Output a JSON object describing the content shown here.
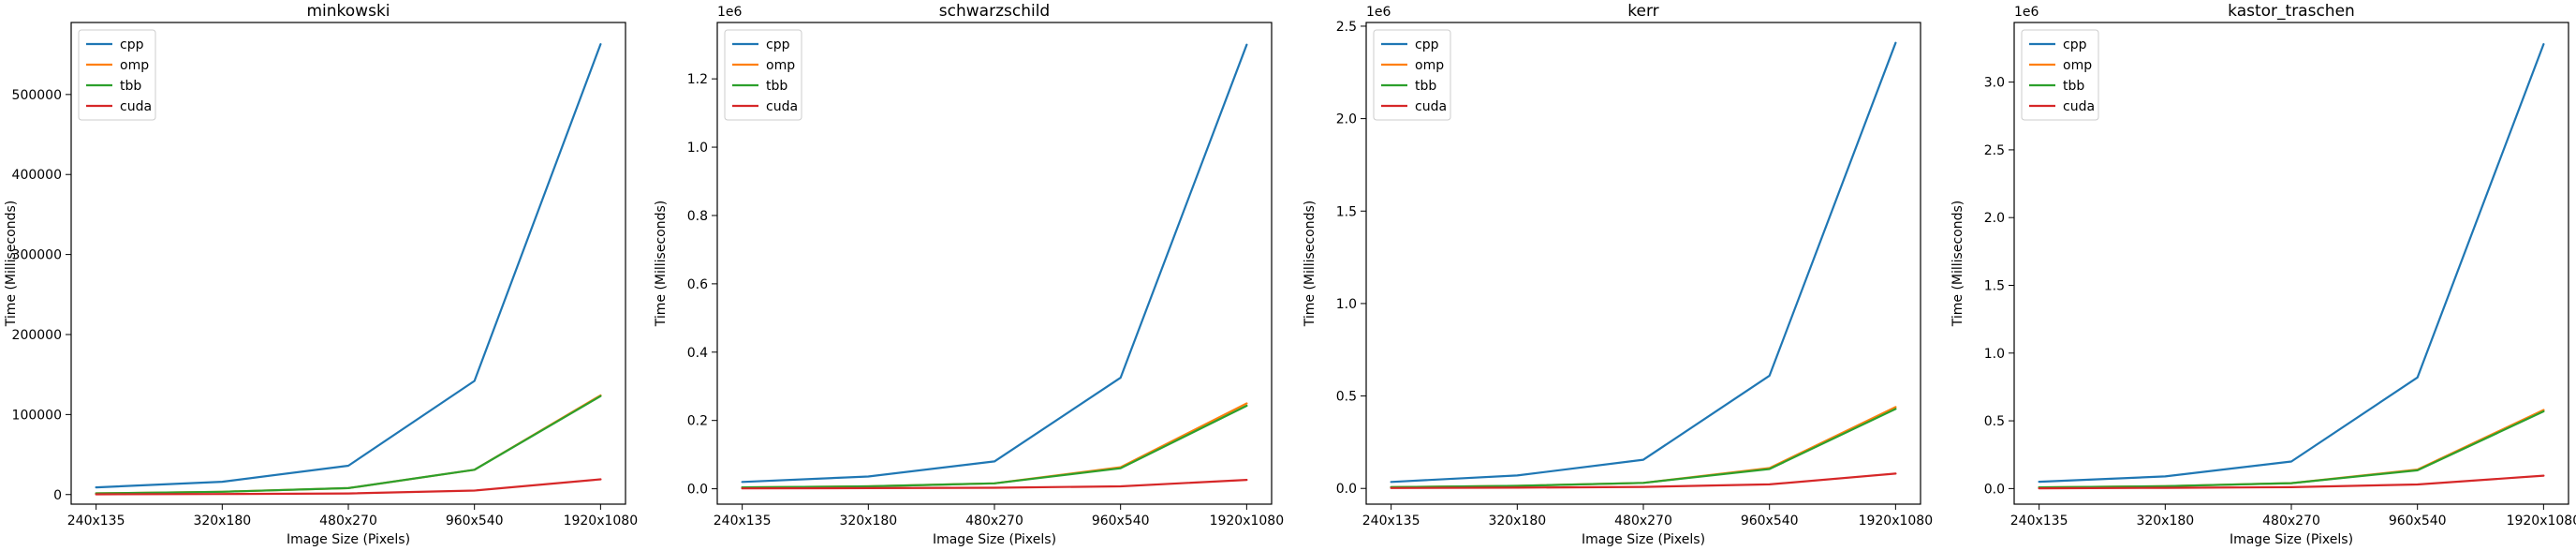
{
  "figure": {
    "colors": {
      "cpp": "#1f77b4",
      "omp": "#ff7f0e",
      "tbb": "#2ca02c",
      "cuda": "#d62728"
    }
  },
  "chart_data": [
    {
      "type": "line",
      "title": "minkowski",
      "xlabel": "Image Size (Pixels)",
      "ylabel": "Time (Milliseconds)",
      "categories": [
        "240x135",
        "320x180",
        "480x270",
        "960x540",
        "1920x1080"
      ],
      "ylim": [
        -12000,
        590000
      ],
      "yticks": [
        0,
        100000,
        200000,
        300000,
        400000,
        500000
      ],
      "ytick_labels": [
        "0",
        "100000",
        "200000",
        "300000",
        "400000",
        "500000"
      ],
      "offset_label": "",
      "legend": "upper left",
      "grid": false,
      "series": [
        {
          "name": "cpp",
          "values": [
            9000,
            16000,
            36000,
            142000,
            563000
          ]
        },
        {
          "name": "omp",
          "values": [
            1500,
            3500,
            8000,
            31000,
            124000
          ]
        },
        {
          "name": "tbb",
          "values": [
            1500,
            3500,
            8000,
            31000,
            123000
          ]
        },
        {
          "name": "cuda",
          "values": [
            300,
            600,
            1300,
            5000,
            19000
          ]
        }
      ]
    },
    {
      "type": "line",
      "title": "schwarzschild",
      "xlabel": "Image Size (Pixels)",
      "ylabel": "Time (Milliseconds)",
      "categories": [
        "240x135",
        "320x180",
        "480x270",
        "960x540",
        "1920x1080"
      ],
      "ylim": [
        -0.045,
        1.365
      ],
      "yticks": [
        0,
        0.2,
        0.4,
        0.6,
        0.8,
        1.0,
        1.2
      ],
      "ytick_labels": [
        "0.0",
        "0.2",
        "0.4",
        "0.6",
        "0.8",
        "1.0",
        "1.2"
      ],
      "offset_label": "1e6",
      "legend": "upper left",
      "grid": false,
      "series": [
        {
          "name": "cpp",
          "values": [
            0.02,
            0.036,
            0.08,
            0.325,
            1.3
          ]
        },
        {
          "name": "omp",
          "values": [
            0.004,
            0.007,
            0.016,
            0.063,
            0.25
          ]
        },
        {
          "name": "tbb",
          "values": [
            0.004,
            0.007,
            0.016,
            0.06,
            0.243
          ]
        },
        {
          "name": "cuda",
          "values": [
            0.001,
            0.002,
            0.003,
            0.007,
            0.026
          ]
        }
      ]
    },
    {
      "type": "line",
      "title": "kerr",
      "xlabel": "Image Size (Pixels)",
      "ylabel": "Time (Milliseconds)",
      "categories": [
        "240x135",
        "320x180",
        "480x270",
        "960x540",
        "1920x1080"
      ],
      "ylim": [
        -0.085,
        2.52
      ],
      "yticks": [
        0,
        0.5,
        1.0,
        1.5,
        2.0,
        2.5
      ],
      "ytick_labels": [
        "0.0",
        "0.5",
        "1.0",
        "1.5",
        "2.0",
        "2.5"
      ],
      "offset_label": "1e6",
      "legend": "upper left",
      "grid": false,
      "series": [
        {
          "name": "cpp",
          "values": [
            0.035,
            0.07,
            0.155,
            0.61,
            2.41
          ]
        },
        {
          "name": "omp",
          "values": [
            0.007,
            0.014,
            0.03,
            0.11,
            0.44
          ]
        },
        {
          "name": "tbb",
          "values": [
            0.007,
            0.014,
            0.03,
            0.105,
            0.43
          ]
        },
        {
          "name": "cuda",
          "values": [
            0.002,
            0.004,
            0.008,
            0.022,
            0.08
          ]
        }
      ]
    },
    {
      "type": "line",
      "title": "kastor_traschen",
      "xlabel": "Image Size (Pixels)",
      "ylabel": "Time (Milliseconds)",
      "categories": [
        "240x135",
        "320x180",
        "480x270",
        "960x540",
        "1920x1080"
      ],
      "ylim": [
        -0.115,
        3.44
      ],
      "yticks": [
        0,
        0.5,
        1.0,
        1.5,
        2.0,
        2.5,
        3.0
      ],
      "ytick_labels": [
        "0.0",
        "0.5",
        "1.0",
        "1.5",
        "2.0",
        "2.5",
        "3.0"
      ],
      "offset_label": "1e6",
      "legend": "upper left",
      "grid": false,
      "series": [
        {
          "name": "cpp",
          "values": [
            0.05,
            0.09,
            0.2,
            0.82,
            3.28
          ]
        },
        {
          "name": "omp",
          "values": [
            0.009,
            0.018,
            0.04,
            0.14,
            0.58
          ]
        },
        {
          "name": "tbb",
          "values": [
            0.009,
            0.018,
            0.04,
            0.135,
            0.57
          ]
        },
        {
          "name": "cuda",
          "values": [
            0.002,
            0.005,
            0.01,
            0.03,
            0.095
          ]
        }
      ]
    }
  ]
}
